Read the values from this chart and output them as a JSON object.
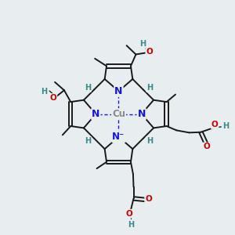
{
  "background_color": "#e8edf0",
  "bond_color": "#1a1a1a",
  "N_color": "#1515e0",
  "Cu_color": "#8a8a8a",
  "O_color": "#cc0000",
  "H_color": "#3a8888",
  "figsize": [
    3.0,
    3.0
  ],
  "dpi": 100,
  "xlim": [
    0,
    10
  ],
  "ylim": [
    0,
    10
  ]
}
